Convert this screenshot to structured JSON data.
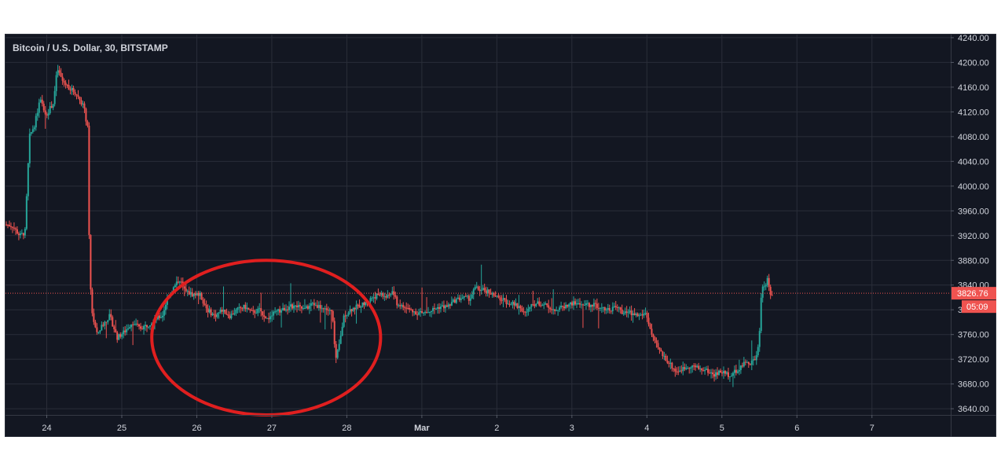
{
  "chart_data": {
    "type": "candlestick",
    "title": "Bitcoin / U.S. Dollar, 30, BITSTAMP",
    "symbol": "Bitcoin / U.S. Dollar",
    "interval": "30",
    "exchange": "BITSTAMP",
    "ylim": [
      3630,
      4245
    ],
    "y_ticks": [
      "4240.00",
      "4200.00",
      "4160.00",
      "4120.00",
      "4080.00",
      "4040.00",
      "4000.00",
      "3960.00",
      "3920.00",
      "3880.00",
      "3840.00",
      "3800.00",
      "3760.00",
      "3720.00",
      "3680.00",
      "3640.00"
    ],
    "y_tick_values": [
      4240,
      4200,
      4160,
      4120,
      4080,
      4040,
      4000,
      3960,
      3920,
      3880,
      3840,
      3800,
      3760,
      3720,
      3680,
      3640
    ],
    "x_ticks": [
      "24",
      "25",
      "26",
      "27",
      "28",
      "Mar",
      "2",
      "3",
      "4",
      "5",
      "6",
      "7"
    ],
    "x_tick_days": [
      24,
      25,
      26,
      27,
      28,
      29,
      30,
      31,
      32,
      33,
      34,
      35
    ],
    "x_range_days": [
      23.45,
      36.05
    ],
    "last_price": "3826.76",
    "countdown": "05:09",
    "colors": {
      "up": "#26a69a",
      "down": "#ef5350",
      "background": "#131722",
      "grid": "#2a2e39",
      "axis_text": "#d1d4dc",
      "annotation": "#e01f1f"
    },
    "grid": true,
    "price_path": [
      [
        23.45,
        3938
      ],
      [
        23.55,
        3936
      ],
      [
        23.65,
        3920
      ],
      [
        23.72,
        3925
      ],
      [
        23.78,
        4080
      ],
      [
        23.85,
        4100
      ],
      [
        23.92,
        4140
      ],
      [
        24.0,
        4115
      ],
      [
        24.1,
        4135
      ],
      [
        24.15,
        4190
      ],
      [
        24.22,
        4170
      ],
      [
        24.3,
        4160
      ],
      [
        24.4,
        4150
      ],
      [
        24.5,
        4130
      ],
      [
        24.56,
        4090
      ],
      [
        24.58,
        3860
      ],
      [
        24.62,
        3790
      ],
      [
        24.68,
        3760
      ],
      [
        24.75,
        3775
      ],
      [
        24.85,
        3790
      ],
      [
        24.95,
        3755
      ],
      [
        25.05,
        3765
      ],
      [
        25.15,
        3780
      ],
      [
        25.25,
        3770
      ],
      [
        25.35,
        3775
      ],
      [
        25.45,
        3785
      ],
      [
        25.55,
        3790
      ],
      [
        25.62,
        3820
      ],
      [
        25.7,
        3835
      ],
      [
        25.78,
        3850
      ],
      [
        25.85,
        3830
      ],
      [
        25.95,
        3825
      ],
      [
        26.05,
        3825
      ],
      [
        26.15,
        3800
      ],
      [
        26.25,
        3790
      ],
      [
        26.35,
        3800
      ],
      [
        26.45,
        3790
      ],
      [
        26.55,
        3800
      ],
      [
        26.65,
        3805
      ],
      [
        26.75,
        3795
      ],
      [
        26.85,
        3800
      ],
      [
        26.95,
        3785
      ],
      [
        27.05,
        3795
      ],
      [
        27.15,
        3800
      ],
      [
        27.25,
        3805
      ],
      [
        27.35,
        3805
      ],
      [
        27.45,
        3800
      ],
      [
        27.55,
        3810
      ],
      [
        27.65,
        3805
      ],
      [
        27.75,
        3800
      ],
      [
        27.82,
        3795
      ],
      [
        27.86,
        3715
      ],
      [
        27.92,
        3750
      ],
      [
        27.97,
        3790
      ],
      [
        28.05,
        3800
      ],
      [
        28.15,
        3805
      ],
      [
        28.25,
        3810
      ],
      [
        28.35,
        3820
      ],
      [
        28.45,
        3825
      ],
      [
        28.55,
        3820
      ],
      [
        28.62,
        3830
      ],
      [
        28.68,
        3810
      ],
      [
        28.75,
        3805
      ],
      [
        28.85,
        3800
      ],
      [
        28.95,
        3795
      ],
      [
        29.05,
        3795
      ],
      [
        29.15,
        3800
      ],
      [
        29.25,
        3805
      ],
      [
        29.35,
        3805
      ],
      [
        29.45,
        3815
      ],
      [
        29.55,
        3820
      ],
      [
        29.65,
        3818
      ],
      [
        29.72,
        3835
      ],
      [
        29.8,
        3832
      ],
      [
        29.9,
        3830
      ],
      [
        30.0,
        3820
      ],
      [
        30.1,
        3815
      ],
      [
        30.2,
        3810
      ],
      [
        30.3,
        3805
      ],
      [
        30.4,
        3795
      ],
      [
        30.5,
        3810
      ],
      [
        30.6,
        3810
      ],
      [
        30.7,
        3805
      ],
      [
        30.8,
        3800
      ],
      [
        30.9,
        3805
      ],
      [
        31.0,
        3810
      ],
      [
        31.1,
        3810
      ],
      [
        31.2,
        3808
      ],
      [
        31.3,
        3808
      ],
      [
        31.4,
        3805
      ],
      [
        31.5,
        3800
      ],
      [
        31.6,
        3805
      ],
      [
        31.7,
        3795
      ],
      [
        31.8,
        3795
      ],
      [
        31.9,
        3790
      ],
      [
        32.0,
        3795
      ],
      [
        32.05,
        3770
      ],
      [
        32.1,
        3750
      ],
      [
        32.2,
        3730
      ],
      [
        32.3,
        3715
      ],
      [
        32.4,
        3700
      ],
      [
        32.5,
        3705
      ],
      [
        32.6,
        3710
      ],
      [
        32.7,
        3705
      ],
      [
        32.8,
        3702
      ],
      [
        32.9,
        3695
      ],
      [
        33.0,
        3700
      ],
      [
        33.1,
        3695
      ],
      [
        33.2,
        3700
      ],
      [
        33.3,
        3712
      ],
      [
        33.4,
        3715
      ],
      [
        33.45,
        3720
      ],
      [
        33.5,
        3740
      ],
      [
        33.54,
        3835
      ],
      [
        33.58,
        3840
      ],
      [
        33.62,
        3848
      ],
      [
        33.66,
        3826.76
      ]
    ],
    "annotations": [
      {
        "type": "ellipse",
        "description": "highlighted consolidation range",
        "from_day": 25.4,
        "to_day": 28.45,
        "price_low": 3630,
        "price_high": 3880
      }
    ]
  }
}
